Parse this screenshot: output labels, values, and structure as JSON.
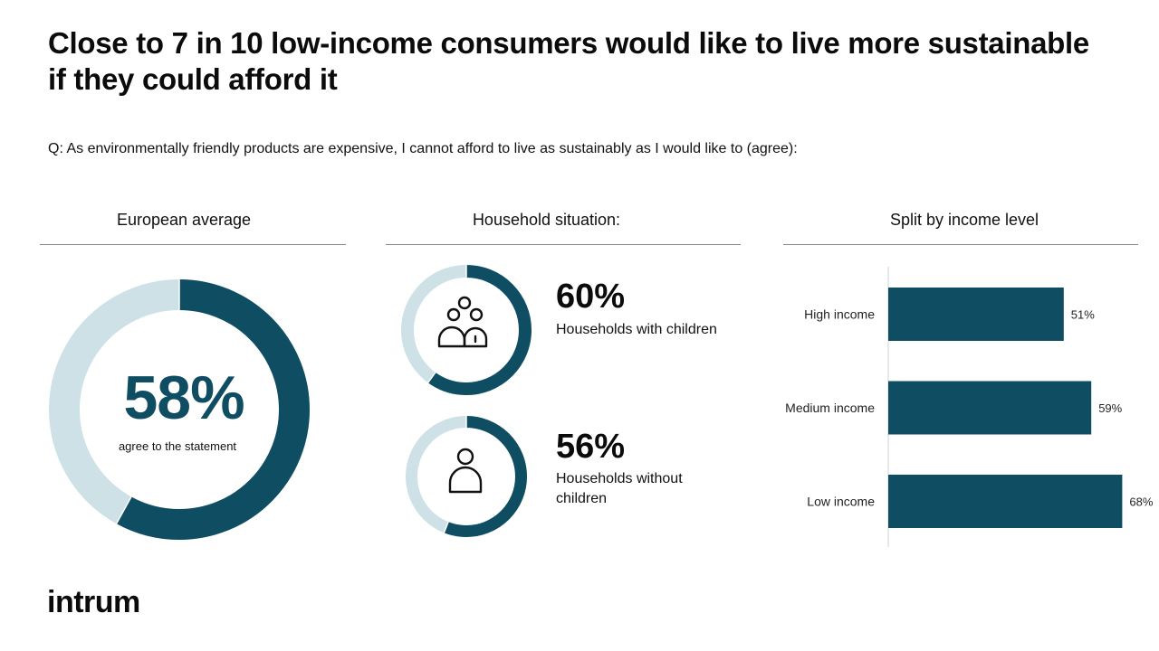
{
  "title": "Close to 7 in 10 low-income consumers would like to live more sustainable if they could afford it",
  "question": "Q: As environmentally friendly products are expensive, I cannot afford to live as sustainably as I would like to (agree):",
  "colors": {
    "dark": "#0f4d63",
    "light": "#cde1e6"
  },
  "panels": {
    "european": {
      "heading": "European average",
      "percent_label": "58%",
      "caption": "agree to the statement"
    },
    "household": {
      "heading": "Household situation:",
      "with_children": {
        "percent_label": "60%",
        "label": "Households with children",
        "icon": "family-icon"
      },
      "without_children": {
        "percent_label": "56%",
        "label": "Households without children",
        "icon": "person-icon"
      }
    },
    "income": {
      "heading": "Split by income level"
    }
  },
  "chart_data": [
    {
      "type": "pie",
      "style": "donut",
      "title": "European average",
      "categories": [
        "agree to the statement",
        ""
      ],
      "values": [
        58,
        42
      ]
    },
    {
      "type": "pie",
      "style": "donut",
      "title": "Households with children",
      "categories": [
        "Households with children",
        ""
      ],
      "values": [
        60,
        40
      ]
    },
    {
      "type": "pie",
      "style": "donut",
      "title": "Households without children",
      "categories": [
        "Households without children",
        ""
      ],
      "values": [
        56,
        44
      ]
    },
    {
      "type": "bar",
      "orientation": "horizontal",
      "title": "Split by income level",
      "categories": [
        "High income",
        "Medium income",
        "Low income"
      ],
      "values": [
        51,
        59,
        68
      ],
      "value_labels": [
        "51%",
        "59%",
        "68%"
      ],
      "xlim": [
        0,
        100
      ]
    }
  ],
  "logo": {
    "text": "intrum"
  }
}
